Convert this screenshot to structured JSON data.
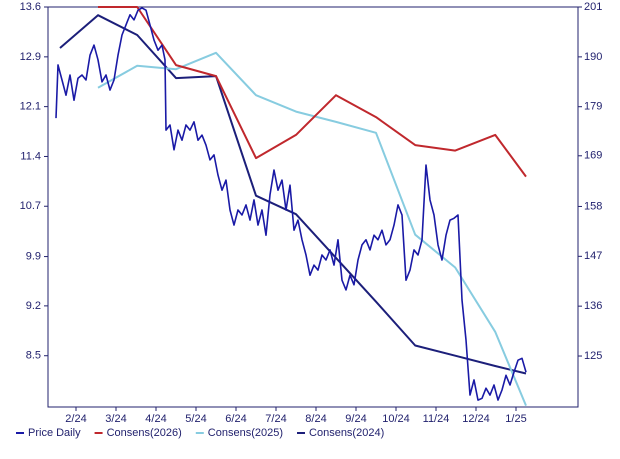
{
  "chart_data": {
    "type": "line",
    "xlim": [
      1.3,
      14.55
    ],
    "xticks": [
      {
        "value": 2,
        "label": "2/24"
      },
      {
        "value": 3,
        "label": "3/24"
      },
      {
        "value": 4,
        "label": "4/24"
      },
      {
        "value": 5,
        "label": "5/24"
      },
      {
        "value": 6,
        "label": "6/24"
      },
      {
        "value": 7,
        "label": "7/24"
      },
      {
        "value": 8,
        "label": "8/24"
      },
      {
        "value": 9,
        "label": "9/24"
      },
      {
        "value": 10,
        "label": "10/24"
      },
      {
        "value": 11,
        "label": "11/24"
      },
      {
        "value": 12,
        "label": "12/24"
      },
      {
        "value": 13,
        "label": "1/25"
      }
    ],
    "ylim": [
      7.75,
      13.6
    ],
    "yticks": [
      13.6,
      {
        "value": 12.871,
        "label": "12.9"
      },
      {
        "value": 12.143,
        "label": "12.1"
      },
      {
        "value": 11.414,
        "label": "11.4"
      },
      {
        "value": 10.686,
        "label": "10.7"
      },
      {
        "value": 9.95,
        "label": "9.9"
      },
      {
        "value": 9.229,
        "label": "9.2"
      },
      8.5
    ],
    "y2lim": [
      113.9,
      201
    ],
    "y2ticks": [
      201,
      {
        "value": 190.14,
        "label": "190"
      },
      {
        "value": 179.29,
        "label": "179"
      },
      {
        "value": 168.6,
        "label": "169"
      },
      {
        "value": 157.57,
        "label": "158"
      },
      {
        "value": 146.71,
        "label": "147"
      },
      {
        "value": 135.86,
        "label": "136"
      },
      125
    ],
    "grid": false,
    "legend": "bottom-left",
    "series": [
      {
        "name": "Price Daily",
        "color": "#1a1aa6",
        "axis": "y2",
        "x": [
          1.5,
          1.55,
          1.65,
          1.75,
          1.85,
          1.95,
          2.05,
          2.15,
          2.25,
          2.35,
          2.45,
          2.55,
          2.65,
          2.75,
          2.85,
          2.95,
          3.05,
          3.15,
          3.25,
          3.35,
          3.45,
          3.55,
          3.65,
          3.75,
          3.85,
          3.95,
          4.05,
          4.15,
          4.225,
          4.25,
          4.35,
          4.45,
          4.55,
          4.65,
          4.75,
          4.85,
          4.95,
          5.05,
          5.15,
          5.25,
          5.35,
          5.45,
          5.55,
          5.65,
          5.75,
          5.85,
          5.95,
          6.05,
          6.15,
          6.25,
          6.35,
          6.45,
          6.55,
          6.65,
          6.75,
          6.85,
          6.95,
          7.05,
          7.15,
          7.25,
          7.35,
          7.45,
          7.55,
          7.65,
          7.75,
          7.85,
          7.95,
          8.05,
          8.15,
          8.25,
          8.35,
          8.45,
          8.55,
          8.65,
          8.75,
          8.85,
          8.95,
          9.05,
          9.15,
          9.25,
          9.35,
          9.45,
          9.55,
          9.65,
          9.75,
          9.85,
          9.95,
          10.05,
          10.15,
          10.25,
          10.35,
          10.45,
          10.55,
          10.65,
          10.75,
          10.85,
          10.95,
          11.05,
          11.15,
          11.25,
          11.35,
          11.45,
          11.55,
          11.65,
          11.75,
          11.85,
          11.95,
          12.05,
          12.15,
          12.25,
          12.35,
          12.45,
          12.55,
          12.65,
          12.75,
          12.85,
          12.95,
          13.05,
          13.15,
          13.25
        ],
        "values": [
          176.8,
          188.4,
          185.1,
          181.8,
          186.2,
          180.7,
          185.5,
          186.2,
          185.1,
          190.5,
          192.7,
          189.5,
          184.7,
          186.2,
          182.9,
          185.1,
          190.5,
          194.9,
          197.1,
          199.3,
          198.2,
          200.3,
          200.8,
          200.3,
          197.1,
          193.8,
          191.6,
          192.7,
          189.5,
          174.2,
          175.3,
          169.9,
          174.2,
          172.0,
          175.3,
          174.2,
          176.0,
          172.0,
          173.1,
          170.9,
          167.7,
          168.8,
          164.4,
          161.1,
          163.3,
          156.8,
          153.5,
          156.8,
          155.7,
          157.9,
          154.6,
          159.0,
          153.5,
          156.8,
          151.3,
          160.1,
          165.5,
          161.1,
          163.3,
          156.8,
          162.2,
          152.4,
          154.6,
          150.3,
          147.0,
          142.6,
          144.8,
          143.7,
          147.0,
          145.9,
          148.1,
          144.8,
          150.3,
          141.5,
          139.4,
          142.6,
          140.5,
          145.9,
          149.2,
          150.3,
          148.1,
          151.3,
          150.3,
          152.4,
          149.2,
          150.3,
          153.5,
          157.9,
          155.7,
          141.5,
          143.7,
          148.1,
          147.0,
          150.3,
          166.6,
          159.0,
          155.7,
          149.2,
          145.9,
          151.3,
          154.6,
          155.0,
          155.7,
          137.2,
          128.5,
          116.5,
          119.8,
          115.4,
          115.8,
          118.0,
          116.5,
          118.7,
          115.4,
          117.6,
          120.8,
          118.7,
          121.5,
          124.1,
          124.5,
          121.5
        ]
      },
      {
        "name": "Consens(2026)",
        "color": "#c0282d",
        "x": [
          2.55,
          3.53,
          4.5,
          5.5,
          6.5,
          7.5,
          8.5,
          9.5,
          10.48,
          11.48,
          12.48,
          13.25
        ],
        "values": [
          13.6,
          13.6,
          12.75,
          12.59,
          11.39,
          11.73,
          12.31,
          11.99,
          11.58,
          11.5,
          11.73,
          11.12
        ]
      },
      {
        "name": "Consens(2025)",
        "color": "#87cce0",
        "x": [
          2.55,
          3.53,
          4.5,
          5.5,
          6.5,
          7.5,
          8.5,
          9.5,
          10.48,
          11.48,
          12.48,
          13.25
        ],
        "values": [
          12.42,
          12.74,
          12.69,
          12.93,
          12.31,
          12.07,
          11.92,
          11.76,
          10.27,
          9.79,
          8.85,
          7.77
        ]
      },
      {
        "name": "Consens(2024)",
        "color": "#1c1f7a",
        "x": [
          1.6,
          2.55,
          3.53,
          4.5,
          5.5,
          6.5,
          7.5,
          8.5,
          9.5,
          10.48,
          11.48,
          12.48,
          13.25
        ],
        "values": [
          13.0,
          13.48,
          13.19,
          12.56,
          12.59,
          10.84,
          10.57,
          9.93,
          9.29,
          8.65,
          8.5,
          8.35,
          8.24
        ]
      }
    ]
  }
}
